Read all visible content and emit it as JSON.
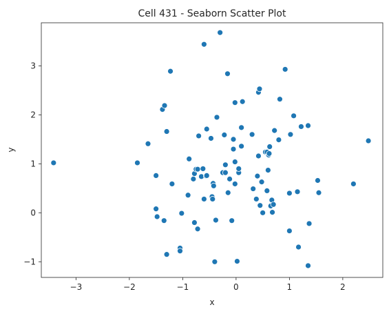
{
  "chart_data": {
    "type": "scatter",
    "title": "Cell 431 - Seaborn Scatter Plot",
    "xlabel": "x",
    "ylabel": "y",
    "xlim": [
      -3.65,
      2.75
    ],
    "ylim": [
      -1.32,
      3.88
    ],
    "xticks": [
      -3,
      -2,
      -1,
      0,
      1,
      2
    ],
    "yticks": [
      -1,
      0,
      1,
      2,
      3
    ],
    "grid": false,
    "marker_color": "#1f77b4",
    "points": [
      [
        -3.42,
        1.02
      ],
      [
        -1.85,
        1.02
      ],
      [
        -1.65,
        1.41
      ],
      [
        -1.5,
        0.76
      ],
      [
        -1.5,
        0.08
      ],
      [
        -1.48,
        -0.08
      ],
      [
        -1.35,
        -0.16
      ],
      [
        -1.38,
        2.11
      ],
      [
        -1.34,
        2.19
      ],
      [
        -1.3,
        1.66
      ],
      [
        -1.3,
        -0.85
      ],
      [
        -1.23,
        2.89
      ],
      [
        -1.2,
        0.59
      ],
      [
        -1.05,
        -0.72
      ],
      [
        -1.05,
        -0.78
      ],
      [
        -1.02,
        -0.01
      ],
      [
        -0.9,
        0.36
      ],
      [
        -0.88,
        1.1
      ],
      [
        -0.8,
        0.69
      ],
      [
        -0.78,
        0.8
      ],
      [
        -0.78,
        -0.2
      ],
      [
        -0.75,
        0.89
      ],
      [
        -0.72,
        0.89
      ],
      [
        -0.72,
        -0.33
      ],
      [
        -0.7,
        1.57
      ],
      [
        -0.65,
        0.74
      ],
      [
        -0.62,
        0.9
      ],
      [
        -0.6,
        0.28
      ],
      [
        -0.6,
        3.44
      ],
      [
        -0.56,
        0.75
      ],
      [
        -0.55,
        1.71
      ],
      [
        -0.55,
        0.76
      ],
      [
        -0.47,
        1.52
      ],
      [
        -0.45,
        0.33
      ],
      [
        -0.44,
        0.28
      ],
      [
        -0.43,
        0.6
      ],
      [
        -0.42,
        0.55
      ],
      [
        -0.38,
        -0.15
      ],
      [
        -0.36,
        1.95
      ],
      [
        -0.3,
        3.68
      ],
      [
        -0.25,
        0.82
      ],
      [
        -0.22,
        1.59
      ],
      [
        -0.2,
        0.82
      ],
      [
        -0.2,
        0.98
      ],
      [
        -0.16,
        2.84
      ],
      [
        -0.15,
        0.41
      ],
      [
        -0.12,
        0.69
      ],
      [
        -0.08,
        -0.16
      ],
      [
        -0.05,
        1.5
      ],
      [
        -0.05,
        1.3
      ],
      [
        -0.02,
        2.25
      ],
      [
        -0.02,
        0.59
      ],
      [
        -0.02,
        1.04
      ],
      [
        0.02,
        -0.99
      ],
      [
        0.05,
        0.82
      ],
      [
        0.05,
        0.9
      ],
      [
        0.1,
        1.74
      ],
      [
        0.1,
        1.36
      ],
      [
        0.12,
        2.27
      ],
      [
        0.3,
        1.6
      ],
      [
        0.32,
        0.49
      ],
      [
        0.38,
        0.28
      ],
      [
        0.4,
        0.75
      ],
      [
        0.42,
        1.16
      ],
      [
        0.42,
        2.46
      ],
      [
        0.44,
        2.53
      ],
      [
        0.45,
        0.15
      ],
      [
        0.48,
        0.63
      ],
      [
        0.5,
        0.0
      ],
      [
        0.55,
        1.24
      ],
      [
        0.58,
        1.24
      ],
      [
        0.58,
        0.45
      ],
      [
        0.6,
        0.87
      ],
      [
        0.61,
        1.18
      ],
      [
        0.62,
        1.21
      ],
      [
        0.63,
        1.35
      ],
      [
        0.65,
        0.14
      ],
      [
        0.67,
        0.26
      ],
      [
        0.68,
        0.01
      ],
      [
        0.7,
        0.17
      ],
      [
        0.72,
        1.68
      ],
      [
        0.8,
        1.49
      ],
      [
        0.82,
        2.32
      ],
      [
        0.92,
        2.93
      ],
      [
        1.0,
        0.4
      ],
      [
        1.0,
        -0.37
      ],
      [
        1.02,
        1.6
      ],
      [
        1.08,
        1.98
      ],
      [
        1.15,
        0.43
      ],
      [
        1.17,
        -0.7
      ],
      [
        1.22,
        1.76
      ],
      [
        1.35,
        1.78
      ],
      [
        1.35,
        -1.08
      ],
      [
        1.37,
        -0.22
      ],
      [
        1.53,
        0.66
      ],
      [
        1.55,
        0.41
      ],
      [
        -0.4,
        -1.0
      ],
      [
        2.2,
        0.59
      ],
      [
        2.48,
        1.47
      ]
    ]
  }
}
